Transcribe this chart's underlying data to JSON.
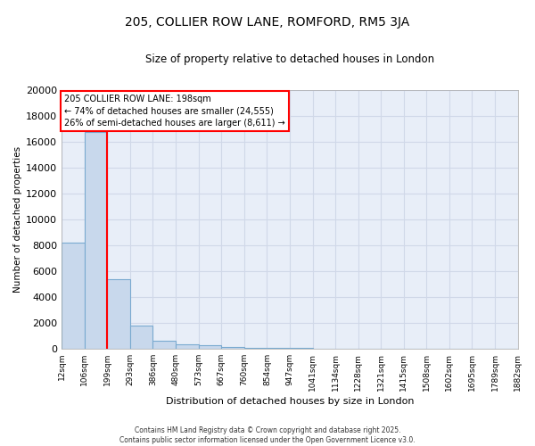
{
  "title": "205, COLLIER ROW LANE, ROMFORD, RM5 3JA",
  "subtitle": "Size of property relative to detached houses in London",
  "xlabel": "Distribution of detached houses by size in London",
  "ylabel": "Number of detached properties",
  "bin_labels": [
    "12sqm",
    "106sqm",
    "199sqm",
    "293sqm",
    "386sqm",
    "480sqm",
    "573sqm",
    "667sqm",
    "760sqm",
    "854sqm",
    "947sqm",
    "1041sqm",
    "1134sqm",
    "1228sqm",
    "1321sqm",
    "1415sqm",
    "1508sqm",
    "1602sqm",
    "1695sqm",
    "1789sqm",
    "1882sqm"
  ],
  "bar_heights": [
    8200,
    16700,
    5400,
    1800,
    650,
    350,
    250,
    150,
    100,
    60,
    40,
    30,
    20,
    15,
    10,
    8,
    6,
    5,
    4,
    3
  ],
  "bar_color": "#c8d8ec",
  "bar_edge_color": "#7aaad0",
  "property_line_color": "red",
  "annotation_text": "205 COLLIER ROW LANE: 198sqm\n← 74% of detached houses are smaller (24,555)\n26% of semi-detached houses are larger (8,611) →",
  "ylim": [
    0,
    20000
  ],
  "yticks": [
    0,
    2000,
    4000,
    6000,
    8000,
    10000,
    12000,
    14000,
    16000,
    18000,
    20000
  ],
  "background_color": "#e8eef8",
  "grid_color": "#d0d8e8",
  "footer": "Contains HM Land Registry data © Crown copyright and database right 2025.\nContains public sector information licensed under the Open Government Licence v3.0.",
  "bin_edges": [
    12,
    106,
    199,
    293,
    386,
    480,
    573,
    667,
    760,
    854,
    947,
    1041,
    1134,
    1228,
    1321,
    1415,
    1508,
    1602,
    1695,
    1789,
    1882
  ]
}
